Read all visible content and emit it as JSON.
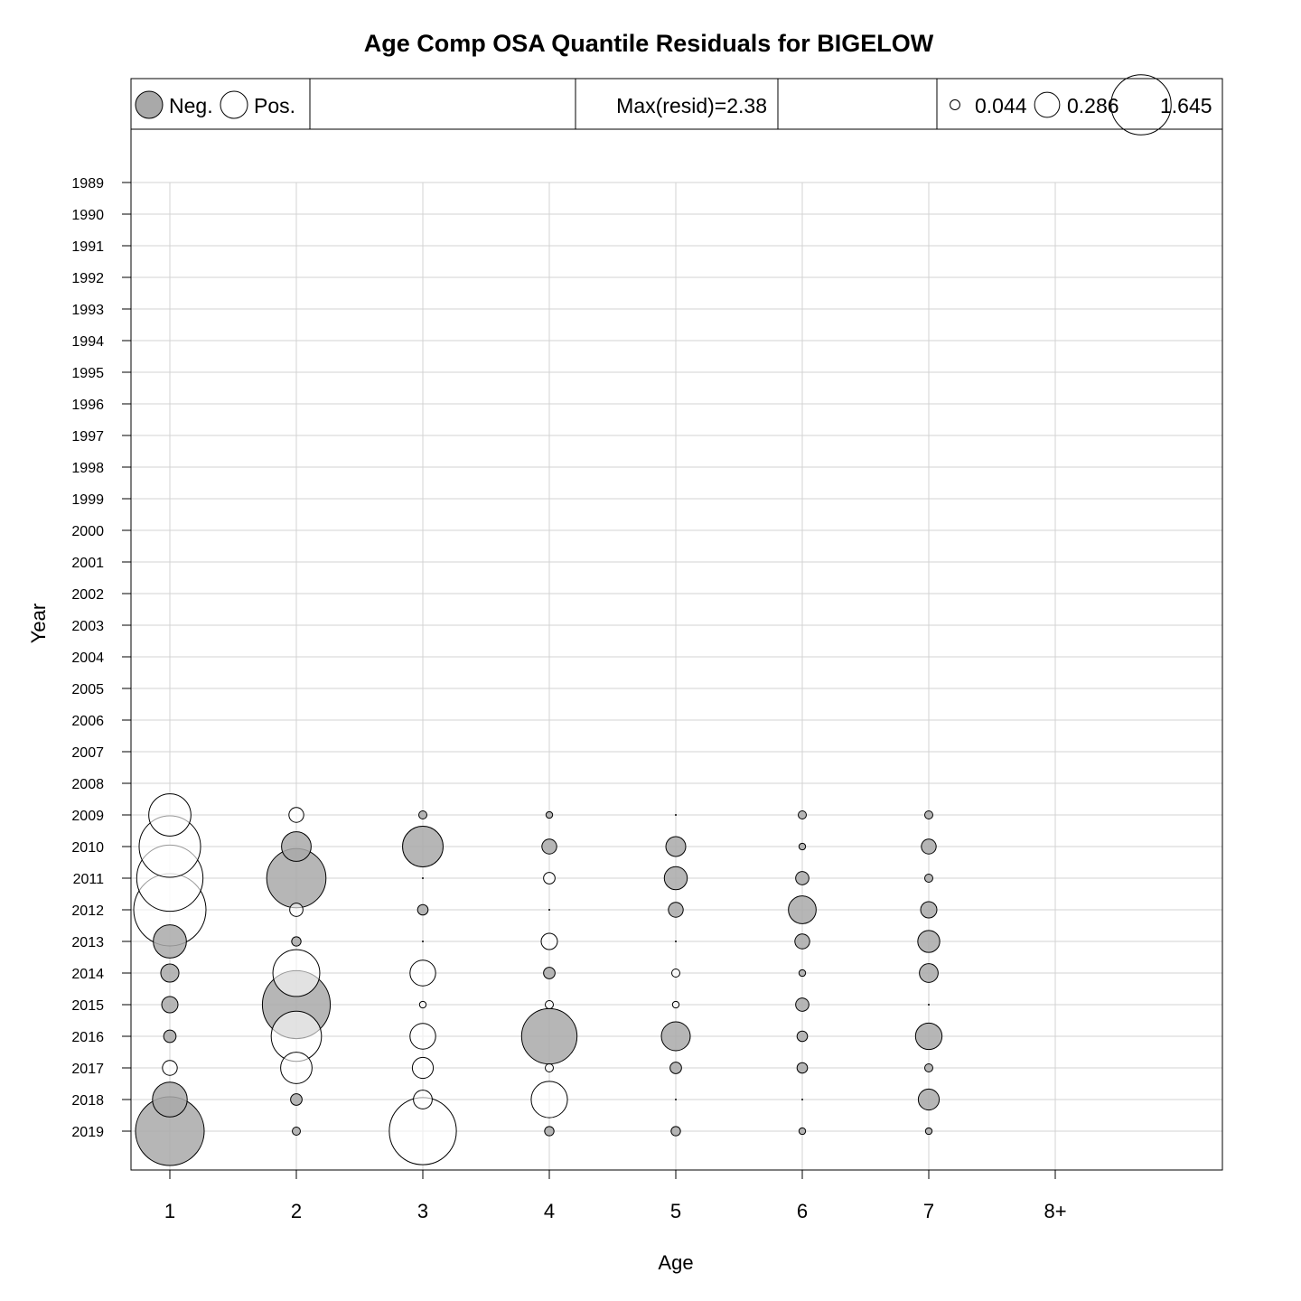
{
  "chart_data": {
    "type": "scatter",
    "subtype": "bubble",
    "title": "Age Comp OSA Quantile Residuals for BIGELOW",
    "xlabel": "Age",
    "ylabel": "Year",
    "ages": [
      "1",
      "2",
      "3",
      "4",
      "5",
      "6",
      "7",
      "8+"
    ],
    "years": [
      1989,
      1990,
      1991,
      1992,
      1993,
      1994,
      1995,
      1996,
      1997,
      1998,
      1999,
      2000,
      2001,
      2002,
      2003,
      2004,
      2005,
      2006,
      2007,
      2008,
      2009,
      2010,
      2011,
      2012,
      2013,
      2014,
      2015,
      2016,
      2017,
      2018,
      2019
    ],
    "legend_sign": {
      "neg_label": "Neg.",
      "pos_label": "Pos.",
      "neg_color": "#a9a9a9",
      "pos_color": "#ffffff"
    },
    "max_resid_label": "Max(resid)=2.38",
    "size_legend": [
      "0.044",
      "0.286",
      "1.645"
    ],
    "size_legend_values": [
      0.044,
      0.286,
      1.645
    ],
    "max_abs_resid": 2.38,
    "note": "residuals: sign negative = grey fill, positive = white fill; 8+ has no points",
    "residuals": {
      "2009": [
        0.81,
        0.1,
        -0.03,
        -0.02,
        0,
        -0.03,
        -0.03
      ],
      "2010": [
        1.72,
        -0.4,
        -0.75,
        -0.1,
        -0.18,
        -0.02,
        -0.1
      ],
      "2011": [
        2.0,
        -1.6,
        0,
        0.06,
        -0.24,
        -0.08,
        -0.03
      ],
      "2012": [
        2.38,
        0.08,
        -0.05,
        0,
        -0.1,
        -0.35,
        -0.12
      ],
      "2013": [
        -0.5,
        -0.04,
        0,
        0.12,
        0,
        -0.1,
        -0.22
      ],
      "2014": [
        -0.15,
        1.0,
        0.3,
        -0.06,
        0.03,
        -0.02,
        -0.16
      ],
      "2015": [
        -0.12,
        -2.1,
        0.02,
        0.03,
        0.02,
        -0.08,
        0
      ],
      "2016": [
        -0.07,
        1.15,
        0.3,
        -1.4,
        -0.38,
        -0.05,
        -0.32
      ],
      "2017": [
        0.1,
        0.45,
        0.2,
        0.03,
        -0.06,
        -0.05,
        -0.03
      ],
      "2018": [
        -0.55,
        -0.06,
        0.16,
        0.6,
        0,
        0,
        -0.2
      ],
      "2019": [
        -2.15,
        -0.03,
        2.05,
        -0.04,
        -0.04,
        -0.02,
        -0.02
      ]
    }
  }
}
